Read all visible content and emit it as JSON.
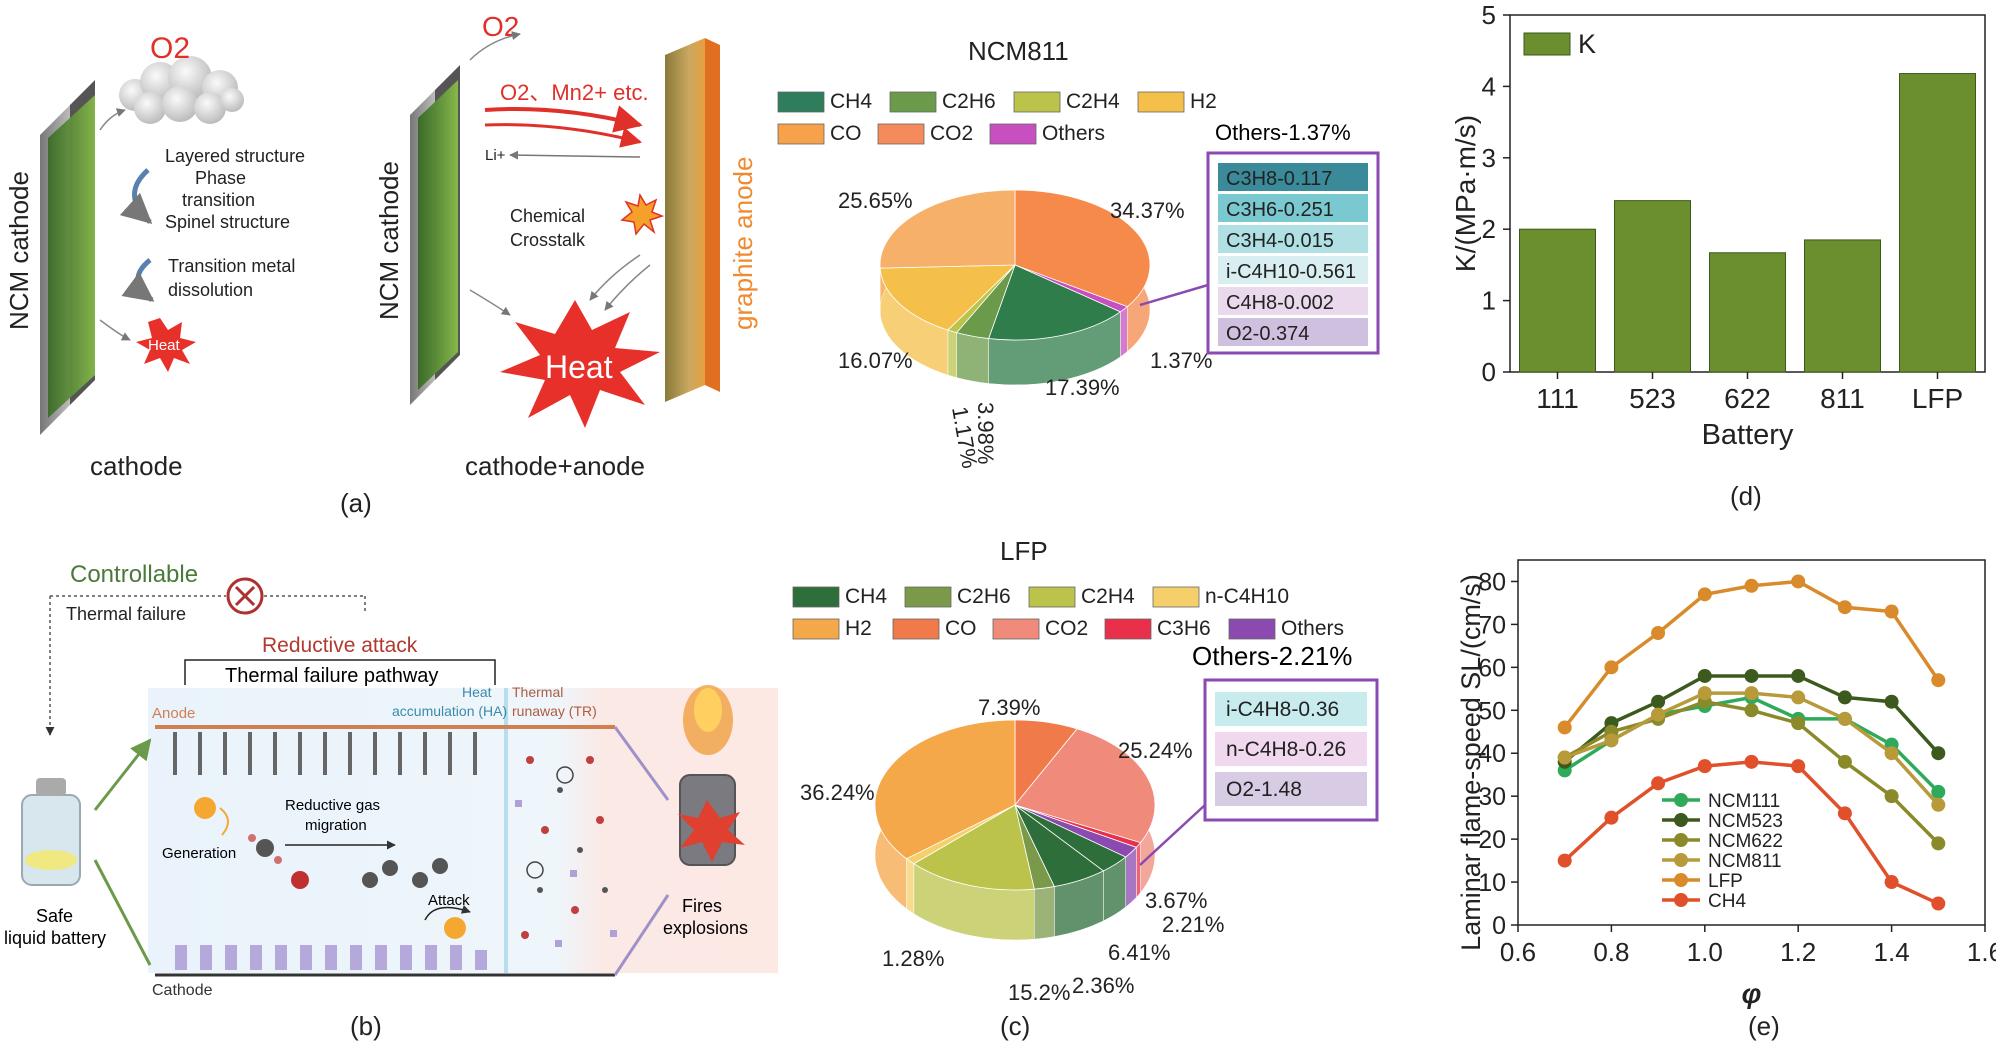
{
  "panel_a": {
    "caption": "(a)",
    "left_title": "cathode",
    "right_title": "cathode+anode",
    "ncm_cathode": "NCM cathode",
    "graphite_anode": "graphite anode",
    "o2": "O2",
    "layered": "Layered structure",
    "phase": "Phase",
    "transition": "transition",
    "spinel": "Spinel structure",
    "tm1": "Transition metal",
    "tm2": "dissolution",
    "heat_small": "Heat",
    "heat_big": "Heat",
    "o2_mn": "O2、Mn2+ etc.",
    "li": "Li+",
    "chem1": "Chemical",
    "chem2": "Crosstalk"
  },
  "panel_b": {
    "caption": "(b)",
    "controllable": "Controllable",
    "thermal_failure": "Thermal failure",
    "reductive_attack": "Reductive attack",
    "pathway": "Thermal failure pathway",
    "anode": "Anode",
    "cathode": "Cathode",
    "heat_acc1": "Heat",
    "heat_acc2": "accumulation (HA)",
    "tr1": "Thermal",
    "tr2": "runaway (TR)",
    "generation": "Generation",
    "rgm1": "Reductive gas",
    "rgm2": "migration",
    "attack": "Attack",
    "safe1": "Safe",
    "safe2": "liquid battery",
    "fires1": "Fires",
    "fires2": "explosions"
  },
  "panel_c": {
    "caption": "(c)",
    "ncm_title": "NCM811",
    "ncm_legend": [
      {
        "name": "CH4",
        "color": "#2e7d5b"
      },
      {
        "name": "C2H6",
        "color": "#6a9a4a"
      },
      {
        "name": "C2H4",
        "color": "#bcc34a"
      },
      {
        "name": "H2",
        "color": "#f5c04a"
      },
      {
        "name": "CO",
        "color": "#f7a24a"
      },
      {
        "name": "CO2",
        "color": "#f58a5a"
      },
      {
        "name": "Others",
        "color": "#c84fc0"
      }
    ],
    "ncm_slices": [
      {
        "label": "34.37%",
        "color": "#f58a4a"
      },
      {
        "label": "17.39%",
        "color": "#2e7d4b"
      },
      {
        "label": "3.98%",
        "color": "#6a9a4a"
      },
      {
        "label": "1.17%",
        "color": "#bcc34a"
      },
      {
        "label": "16.07%",
        "color": "#f5c04a"
      },
      {
        "label": "25.65%",
        "color": "#f7b06a"
      },
      {
        "label": "1.37%",
        "color": "#c84fc0"
      }
    ],
    "ncm_others_title": "Others-1.37%",
    "ncm_others": [
      "C3H8-0.117",
      "C3H6-0.251",
      "C3H4-0.015",
      "i-C4H10-0.561",
      "C4H8-0.002",
      "O2-0.374"
    ],
    "lfp_title": "LFP",
    "lfp_legend": [
      {
        "name": "CH4",
        "color": "#2e6e3b"
      },
      {
        "name": "C2H6",
        "color": "#7a9a4a"
      },
      {
        "name": "C2H4",
        "color": "#bcc34a"
      },
      {
        "name": "n-C4H10",
        "color": "#f5d06a"
      },
      {
        "name": "H2",
        "color": "#f5a84a"
      },
      {
        "name": "CO",
        "color": "#f07a4a"
      },
      {
        "name": "CO2",
        "color": "#f08a7a"
      },
      {
        "name": "C3H6",
        "color": "#e8304a"
      },
      {
        "name": "Others",
        "color": "#8a4ab0"
      }
    ],
    "lfp_slices": [
      "7.39%",
      "25.24%",
      "36.24%",
      "1.28%",
      "15.2%",
      "2.36%",
      "6.41%",
      "3.67%",
      "2.21%"
    ],
    "lfp_others_title": "Others-2.21%",
    "lfp_others": [
      "i-C4H8-0.36",
      "n-C4H8-0.26",
      "O2-1.48"
    ]
  },
  "panel_d": {
    "caption": "(d)",
    "chart_data": {
      "type": "bar",
      "categories": [
        "111",
        "523",
        "622",
        "811",
        "LFP"
      ],
      "values": [
        2.0,
        2.4,
        1.67,
        1.85,
        4.18
      ],
      "xlabel": "Battery",
      "ylabel": "K/(MPa·m/s)",
      "ylim": [
        0,
        5
      ],
      "yticks": [
        "0",
        "1",
        "2",
        "3",
        "4",
        "5"
      ],
      "legend": "K",
      "legend_position": "top-left",
      "color": "#6b8e2e"
    }
  },
  "panel_e": {
    "caption": "(e)",
    "chart_data": {
      "type": "line",
      "x": [
        0.7,
        0.8,
        0.9,
        1.0,
        1.1,
        1.2,
        1.3,
        1.4,
        1.5
      ],
      "xlabel": "φ",
      "ylabel": "Laminar flame-speed SL/(cm/s)",
      "xlim": [
        0.6,
        1.6
      ],
      "ylim": [
        0,
        85
      ],
      "xticks": [
        "0.6",
        "0.8",
        "1.0",
        "1.2",
        "1.4",
        "1.6"
      ],
      "yticks": [
        "0",
        "10",
        "20",
        "30",
        "40",
        "50",
        "60",
        "70",
        "80"
      ],
      "legend_position": "center-left",
      "series": [
        {
          "name": "NCM111",
          "color": "#2eaa5a",
          "values": [
            36,
            43,
            49,
            51,
            53,
            48,
            48,
            42,
            31
          ]
        },
        {
          "name": "NCM523",
          "color": "#3d5a1e",
          "values": [
            38,
            47,
            52,
            58,
            58,
            58,
            53,
            52,
            40
          ]
        },
        {
          "name": "NCM622",
          "color": "#8a8a2a",
          "values": [
            39,
            45,
            48,
            52,
            50,
            47,
            38,
            30,
            19
          ]
        },
        {
          "name": "NCM811",
          "color": "#b89a3a",
          "values": [
            39,
            43,
            49,
            54,
            54,
            53,
            48,
            40,
            28
          ]
        },
        {
          "name": "LFP",
          "color": "#d98a2a",
          "values": [
            46,
            60,
            68,
            77,
            79,
            80,
            74,
            73,
            57
          ]
        },
        {
          "name": "CH4",
          "color": "#e0502a",
          "values": [
            15,
            25,
            33,
            37,
            38,
            37,
            26,
            10,
            5
          ]
        }
      ]
    }
  }
}
